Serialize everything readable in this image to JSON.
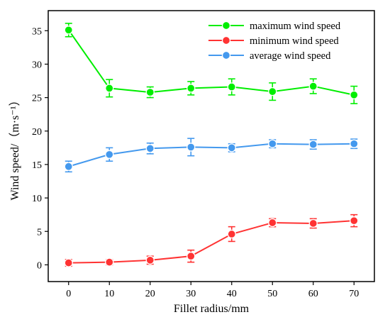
{
  "chart_data": {
    "type": "line",
    "title": "",
    "xlabel": "Fillet radius/mm",
    "ylabel": "Wind speed/（m·s⁻¹）",
    "xlim": [
      -5,
      75
    ],
    "ylim": [
      -2.5,
      38
    ],
    "x_ticks": [
      0,
      10,
      20,
      30,
      40,
      50,
      60,
      70
    ],
    "y_ticks": [
      0,
      5,
      10,
      15,
      20,
      25,
      30,
      35
    ],
    "grid": false,
    "legend_position": "top-right",
    "series": [
      {
        "name": "maximum wind speed",
        "color": "#00ee00",
        "x": [
          0,
          10,
          20,
          30,
          40,
          50,
          60,
          70
        ],
        "values": [
          35.1,
          26.4,
          25.8,
          26.4,
          26.6,
          25.9,
          26.7,
          25.4
        ],
        "error": [
          1.0,
          1.3,
          0.8,
          1.0,
          1.2,
          1.3,
          1.1,
          1.3
        ]
      },
      {
        "name": "minimum wind speed",
        "color": "#ff3333",
        "x": [
          0,
          10,
          20,
          30,
          40,
          50,
          60,
          70
        ],
        "values": [
          0.3,
          0.4,
          0.7,
          1.3,
          4.6,
          6.3,
          6.2,
          6.6
        ],
        "error": [
          0.5,
          0.4,
          0.6,
          0.9,
          1.1,
          0.6,
          0.7,
          0.9
        ]
      },
      {
        "name": "average wind speed",
        "color": "#4499ee",
        "x": [
          0,
          10,
          20,
          30,
          40,
          50,
          60,
          70
        ],
        "values": [
          14.7,
          16.5,
          17.4,
          17.6,
          17.5,
          18.1,
          18.0,
          18.1
        ],
        "error": [
          0.8,
          1.0,
          0.8,
          1.3,
          0.6,
          0.6,
          0.7,
          0.7
        ]
      }
    ]
  }
}
